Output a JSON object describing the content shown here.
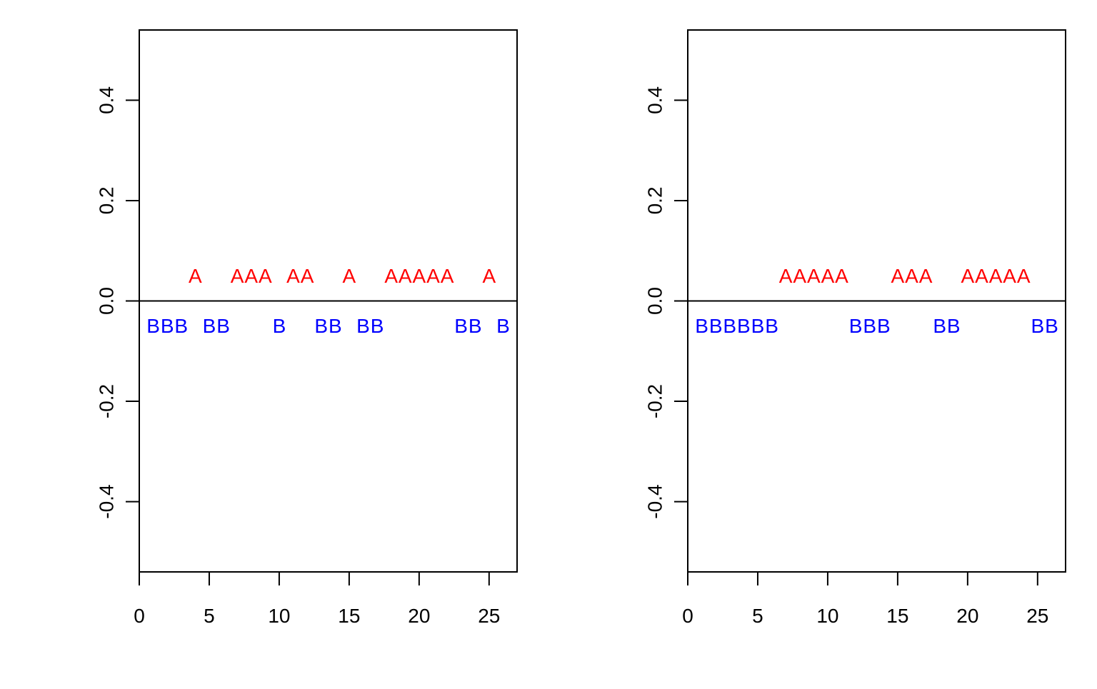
{
  "chart_data": [
    {
      "type": "scatter",
      "title": "",
      "xlabel": "",
      "ylabel": "",
      "xlim": [
        0,
        27
      ],
      "ylim": [
        -0.54,
        0.54
      ],
      "x_ticks": [
        0,
        5,
        10,
        15,
        20,
        25
      ],
      "x_tick_labels": [
        "0",
        "5",
        "10",
        "15",
        "20",
        "25"
      ],
      "y_ticks": [
        -0.4,
        -0.2,
        0.0,
        0.2,
        0.4
      ],
      "y_tick_labels": [
        "-0.4",
        "-0.2",
        "0.0",
        "0.2",
        "0.4"
      ],
      "hline": 0,
      "series": [
        {
          "name": "A",
          "label": "A",
          "color": "#ff0000",
          "y": 0.05,
          "x": [
            4,
            7,
            8,
            9,
            11,
            12,
            15,
            18,
            19,
            20,
            21,
            22,
            25
          ]
        },
        {
          "name": "B",
          "label": "B",
          "color": "#0000ff",
          "y": -0.05,
          "x": [
            1,
            2,
            3,
            5,
            6,
            10,
            13,
            14,
            16,
            17,
            23,
            24,
            26
          ]
        }
      ]
    },
    {
      "type": "scatter",
      "title": "",
      "xlabel": "",
      "ylabel": "",
      "xlim": [
        0,
        27
      ],
      "ylim": [
        -0.54,
        0.54
      ],
      "x_ticks": [
        0,
        5,
        10,
        15,
        20,
        25
      ],
      "x_tick_labels": [
        "0",
        "5",
        "10",
        "15",
        "20",
        "25"
      ],
      "y_ticks": [
        -0.4,
        -0.2,
        0.0,
        0.2,
        0.4
      ],
      "y_tick_labels": [
        "-0.4",
        "-0.2",
        "0.0",
        "0.2",
        "0.4"
      ],
      "hline": 0,
      "series": [
        {
          "name": "A",
          "label": "A",
          "color": "#ff0000",
          "y": 0.05,
          "x": [
            7,
            8,
            9,
            10,
            11,
            15,
            16,
            17,
            20,
            21,
            22,
            23,
            24
          ]
        },
        {
          "name": "B",
          "label": "B",
          "color": "#0000ff",
          "y": -0.05,
          "x": [
            1,
            2,
            3,
            4,
            5,
            6,
            12,
            13,
            14,
            18,
            19,
            25,
            26
          ]
        }
      ]
    }
  ]
}
